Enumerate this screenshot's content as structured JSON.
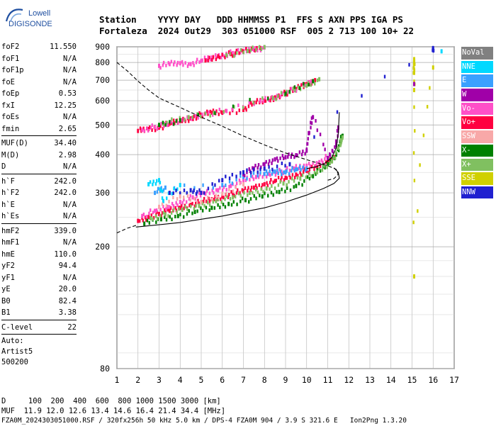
{
  "logo": {
    "line1": "Lowell",
    "line2": "DIGISONDE"
  },
  "header": {
    "line1": "Station    YYYY DAY   DDD HHMMSS P1  FFS S AXN PPS IGA PS",
    "line2": "Fortaleza  2024 Out29  303 051000 RSF  005 2 713 100 10+ 22"
  },
  "params_groups": [
    [
      {
        "label": "foF2",
        "value": "11.550"
      },
      {
        "label": "foF1",
        "value": "N/A"
      },
      {
        "label": "foF1p",
        "value": "N/A"
      },
      {
        "label": "foE",
        "value": "N/A"
      },
      {
        "label": "foEp",
        "value": "0.53"
      },
      {
        "label": "fxI",
        "value": "12.25"
      },
      {
        "label": "foEs",
        "value": "N/A"
      },
      {
        "label": "fmin",
        "value": "2.65"
      }
    ],
    [
      {
        "label": "MUF(D)",
        "value": "34.40"
      },
      {
        "label": "M(D)",
        "value": "2.98"
      },
      {
        "label": "D",
        "value": "N/A"
      }
    ],
    [
      {
        "label": "h`F",
        "value": "242.0"
      },
      {
        "label": "h`F2",
        "value": "242.0"
      },
      {
        "label": "h`E",
        "value": "N/A"
      },
      {
        "label": "h`Es",
        "value": "N/A"
      }
    ],
    [
      {
        "label": "hmF2",
        "value": "339.0"
      },
      {
        "label": "hmF1",
        "value": "N/A"
      },
      {
        "label": "hmE",
        "value": "110.0"
      },
      {
        "label": "yF2",
        "value": "94.4"
      },
      {
        "label": "yF1",
        "value": "N/A"
      },
      {
        "label": "yE",
        "value": "20.0"
      },
      {
        "label": "B0",
        "value": "82.4"
      },
      {
        "label": "B1",
        "value": "3.38"
      }
    ],
    [
      {
        "label": "C-level",
        "value": "22"
      }
    ]
  ],
  "auto": {
    "line1": "Auto:",
    "line2": "Artist5",
    "line3": "500200"
  },
  "legend": [
    {
      "label": "NoVal",
      "color": "#808080"
    },
    {
      "label": "NNE",
      "color": "#00d8ff"
    },
    {
      "label": "E",
      "color": "#3aa0ff"
    },
    {
      "label": "W",
      "color": "#a000a8"
    },
    {
      "label": "Vo-",
      "color": "#ff50c8"
    },
    {
      "label": "Vo+",
      "color": "#ff0040"
    },
    {
      "label": "SSW",
      "color": "#f8a8a8"
    },
    {
      "label": "X-",
      "color": "#008000"
    },
    {
      "label": "X+",
      "color": "#80c060"
    },
    {
      "label": "SSE",
      "color": "#d0d000"
    },
    {
      "label": "NNW",
      "color": "#2020d0"
    }
  ],
  "footer": {
    "line1": "D     100  200  400  600  800 1000 1500 3000 [km]",
    "line2": "MUF  11.9 12.0 12.6 13.4 14.6 16.4 21.4 34.4 [MHz]",
    "line3": "FZA0M_2024303051000.RSF / 320fx256h 50 kHz 5.0 km / DPS-4 FZA0M 904 / 3.9 S 321.6 E   Ion2Png 1.3.20"
  },
  "chart_data": {
    "type": "scatter",
    "xlim": [
      1,
      17
    ],
    "ylim": [
      80,
      900
    ],
    "y_scale": "log",
    "xticks": [
      1,
      2,
      3,
      4,
      5,
      6,
      7,
      8,
      9,
      10,
      11,
      12,
      13,
      14,
      15,
      16,
      17
    ],
    "yticks": [
      80,
      200,
      300,
      400,
      500,
      600,
      700,
      800,
      900
    ],
    "grid": true,
    "series": [
      {
        "color": "#ff0040",
        "points": [
          [
            2.0,
            243
          ],
          [
            2.5,
            250
          ],
          [
            3.0,
            256
          ],
          [
            3.5,
            262
          ],
          [
            4.0,
            268
          ],
          [
            4.5,
            274
          ],
          [
            5.0,
            280
          ],
          [
            5.5,
            286
          ],
          [
            6.0,
            292
          ],
          [
            6.5,
            298
          ],
          [
            7.0,
            304
          ],
          [
            7.5,
            312
          ],
          [
            8.0,
            320
          ],
          [
            8.5,
            328
          ],
          [
            9.0,
            336
          ],
          [
            9.5,
            344
          ],
          [
            10.0,
            354
          ],
          [
            10.5,
            364
          ],
          [
            11.0,
            378
          ],
          [
            11.3,
            392
          ]
        ]
      },
      {
        "color": "#ff50c8",
        "points": [
          [
            2.2,
            252
          ],
          [
            2.8,
            262
          ],
          [
            3.4,
            270
          ],
          [
            4.0,
            280
          ],
          [
            4.6,
            290
          ],
          [
            5.2,
            298
          ],
          [
            5.8,
            306
          ],
          [
            6.4,
            316
          ],
          [
            7.0,
            328
          ],
          [
            7.6,
            338
          ],
          [
            8.2,
            346
          ],
          [
            8.8,
            352
          ],
          [
            9.4,
            360
          ],
          [
            10.0,
            368
          ],
          [
            10.6,
            378
          ],
          [
            11.1,
            396
          ]
        ]
      },
      {
        "color": "#008000",
        "points": [
          [
            2.3,
            238
          ],
          [
            3.1,
            246
          ],
          [
            3.9,
            252
          ],
          [
            4.7,
            260
          ],
          [
            5.5,
            268
          ],
          [
            6.3,
            276
          ],
          [
            7.1,
            284
          ],
          [
            7.9,
            292
          ],
          [
            8.7,
            302
          ],
          [
            9.5,
            316
          ],
          [
            10.3,
            340
          ],
          [
            11.0,
            372
          ],
          [
            11.4,
            400
          ],
          [
            11.6,
            440
          ],
          [
            11.7,
            460
          ]
        ]
      },
      {
        "color": "#80c060",
        "points": [
          [
            2.6,
            248
          ],
          [
            3.3,
            255
          ],
          [
            4.1,
            264
          ],
          [
            4.9,
            272
          ],
          [
            5.7,
            282
          ],
          [
            6.5,
            290
          ],
          [
            7.3,
            300
          ],
          [
            8.1,
            310
          ],
          [
            8.9,
            322
          ],
          [
            9.7,
            334
          ],
          [
            10.5,
            350
          ],
          [
            11.2,
            380
          ],
          [
            11.6,
            430
          ],
          [
            11.7,
            455
          ]
        ]
      },
      {
        "color": "#3aa0ff",
        "points": [
          [
            2.8,
            300
          ],
          [
            3.3,
            312
          ],
          [
            6.0,
            318
          ],
          [
            7.0,
            338
          ],
          [
            8.0,
            346
          ],
          [
            8.5,
            352
          ],
          [
            9.0,
            350
          ],
          [
            9.5,
            358
          ],
          [
            10.0,
            360
          ]
        ]
      },
      {
        "color": "#00d8ff",
        "points": [
          [
            2.5,
            320
          ],
          [
            3.0,
            330
          ],
          [
            3.2,
            282
          ],
          [
            4.0,
            318
          ]
        ]
      },
      {
        "color": "#a000a8",
        "points": [
          [
            7.0,
            345
          ],
          [
            7.5,
            360
          ],
          [
            8.0,
            372
          ],
          [
            8.5,
            386
          ],
          [
            9.0,
            392
          ],
          [
            9.5,
            398
          ],
          [
            10.0,
            412
          ],
          [
            10.1,
            470
          ],
          [
            10.3,
            530
          ],
          [
            11.0,
            390
          ],
          [
            11.4,
            430
          ],
          [
            11.5,
            490
          ]
        ]
      },
      {
        "color": "#2020d0",
        "points": [
          [
            3.5,
            300
          ],
          [
            4.5,
            306
          ],
          [
            5.0,
            300
          ],
          [
            6.0,
            330
          ],
          [
            7.0,
            350
          ],
          [
            8.0,
            360
          ],
          [
            9.2,
            372
          ],
          [
            16.0,
            880
          ],
          [
            16.0,
            890
          ]
        ]
      },
      {
        "color": "#f8a8a8",
        "points": [
          [
            3.0,
            270
          ],
          [
            4.0,
            292
          ],
          [
            5.0,
            280
          ],
          [
            6.0,
            298
          ],
          [
            7.0,
            320
          ]
        ]
      },
      {
        "color": "#ff0040",
        "points": [
          [
            2.0,
            478
          ],
          [
            2.5,
            485
          ],
          [
            3.0,
            490
          ],
          [
            3.5,
            505
          ],
          [
            4.0,
            515
          ],
          [
            4.5,
            525
          ],
          [
            5.0,
            540
          ],
          [
            5.5,
            548
          ],
          [
            6.0,
            548
          ],
          [
            7.0,
            560
          ],
          [
            7.5,
            590
          ],
          [
            8.0,
            600
          ],
          [
            8.5,
            615
          ],
          [
            9.0,
            635
          ],
          [
            9.5,
            655
          ],
          [
            10.0,
            680
          ],
          [
            10.4,
            700
          ]
        ]
      },
      {
        "color": "#ff50c8",
        "points": [
          [
            2.2,
            482
          ],
          [
            2.8,
            492
          ],
          [
            3.4,
            500
          ],
          [
            4.2,
            520
          ],
          [
            5.2,
            545
          ],
          [
            6.2,
            555
          ],
          [
            7.8,
            598
          ],
          [
            8.6,
            622
          ],
          [
            9.4,
            650
          ],
          [
            10.2,
            690
          ]
        ]
      },
      {
        "color": "#80c060",
        "points": [
          [
            3.2,
            505
          ],
          [
            4.4,
            530
          ],
          [
            5.6,
            548
          ],
          [
            8.4,
            612
          ],
          [
            9.2,
            640
          ],
          [
            10.0,
            672
          ],
          [
            10.6,
            705
          ]
        ]
      },
      {
        "color": "#008000",
        "points": [
          [
            3.0,
            500
          ],
          [
            4.0,
            518
          ],
          [
            9.0,
            632
          ],
          [
            10.3,
            695
          ]
        ]
      },
      {
        "color": "#ff50c8",
        "points": [
          [
            3.0,
            780
          ],
          [
            3.5,
            790
          ],
          [
            4.0,
            795
          ],
          [
            4.5,
            790
          ],
          [
            5.0,
            810
          ],
          [
            5.5,
            830
          ],
          [
            6.0,
            848
          ],
          [
            6.5,
            858
          ],
          [
            7.0,
            870
          ],
          [
            7.5,
            880
          ],
          [
            8.0,
            895
          ]
        ]
      },
      {
        "color": "#ff0040",
        "points": [
          [
            5.2,
            812
          ],
          [
            5.8,
            838
          ],
          [
            6.4,
            852
          ],
          [
            7.0,
            868
          ],
          [
            7.8,
            892
          ]
        ]
      },
      {
        "color": "#80c060",
        "points": [
          [
            6.2,
            845
          ],
          [
            7.2,
            872
          ],
          [
            8.0,
            898
          ]
        ]
      },
      {
        "color": "#d0d000",
        "points": [
          [
            15.1,
            740
          ],
          [
            15.1,
            820
          ],
          [
            15.1,
            650
          ],
          [
            15.1,
            160
          ],
          [
            16.0,
            770
          ]
        ]
      },
      {
        "color": "#00d8ff",
        "points": [
          [
            16.4,
            870
          ]
        ]
      },
      {
        "color": "#a000a8",
        "points": [
          [
            15.1,
            680
          ]
        ]
      }
    ],
    "curves": [
      {
        "style": "solid",
        "points": [
          [
            1.9,
            232
          ],
          [
            3,
            236
          ],
          [
            4,
            240
          ],
          [
            5,
            246
          ],
          [
            6,
            252
          ],
          [
            7,
            260
          ],
          [
            8,
            268
          ],
          [
            9,
            280
          ],
          [
            10,
            295
          ],
          [
            10.8,
            310
          ],
          [
            11.3,
            322
          ],
          [
            11.55,
            335
          ],
          [
            11.5,
            350
          ],
          [
            11.3,
            362
          ]
        ]
      },
      {
        "style": "solid",
        "points": [
          [
            10.0,
            360
          ],
          [
            10.5,
            366
          ],
          [
            10.9,
            376
          ],
          [
            11.2,
            392
          ],
          [
            11.4,
            420
          ],
          [
            11.5,
            470
          ],
          [
            11.55,
            550
          ]
        ]
      },
      {
        "style": "dashed",
        "points": [
          [
            1.0,
            800
          ],
          [
            1.5,
            750
          ],
          [
            2.0,
            695
          ],
          [
            2.5,
            650
          ],
          [
            3.0,
            612
          ],
          [
            4.0,
            570
          ],
          [
            5.0,
            530
          ],
          [
            6.0,
            495
          ],
          [
            7.0,
            460
          ],
          [
            8.0,
            430
          ],
          [
            9.0,
            405
          ],
          [
            10.0,
            385
          ],
          [
            10.5,
            376
          ],
          [
            11.0,
            368
          ],
          [
            11.4,
            358
          ],
          [
            11.5,
            345
          ],
          [
            11.3,
            334
          ],
          [
            11.0,
            330
          ]
        ]
      },
      {
        "style": "dashed",
        "points": [
          [
            1.0,
            222
          ],
          [
            1.5,
            230
          ],
          [
            2.0,
            236
          ]
        ]
      }
    ]
  }
}
